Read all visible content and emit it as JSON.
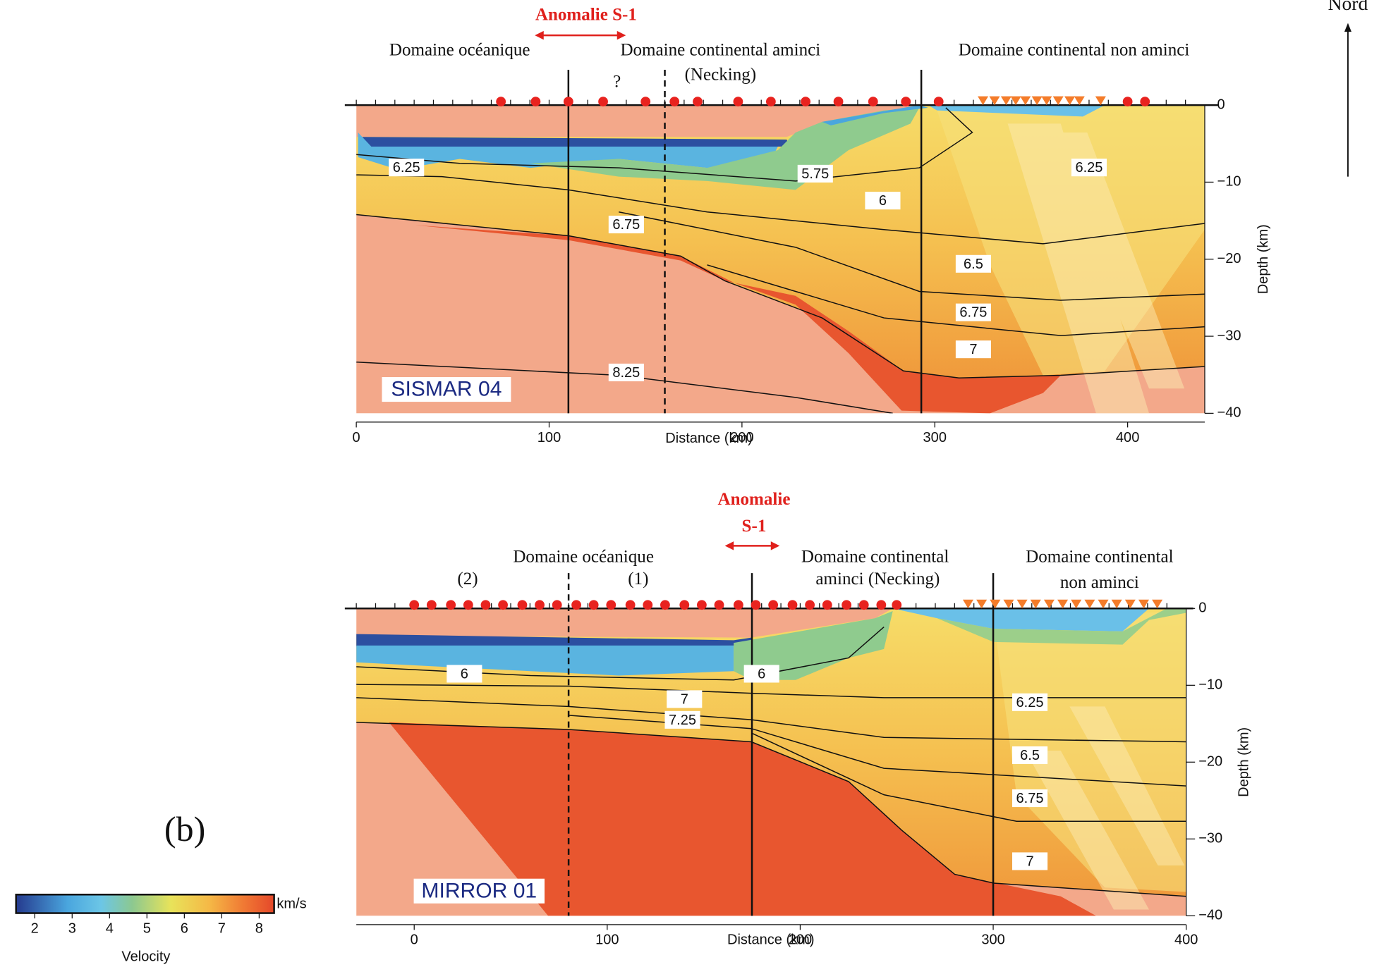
{
  "chart_data": [
    {
      "type": "section",
      "title": "SISMAR 04",
      "xlabel": "Distance (km)",
      "ylabel": "Depth (km)",
      "xlim": [
        0,
        440
      ],
      "xticks": [
        0,
        100,
        200,
        300,
        400
      ],
      "ylim": [
        -40,
        0
      ],
      "yticks": [
        {
          "value": 0,
          "label": "0"
        },
        {
          "value": -10,
          "label": "−10"
        },
        {
          "value": -20,
          "label": "−20"
        },
        {
          "value": -30,
          "label": "−30"
        },
        {
          "value": -40,
          "label": "−40"
        }
      ],
      "annotations": [
        "Anomalie S-1",
        "Domaine océanique",
        "Domaine continental aminci",
        "(Necking)",
        "Domaine continental non aminci",
        "?"
      ],
      "boundaries": [
        110,
        160,
        293
      ],
      "boundary_dashed": [
        false,
        true,
        false
      ],
      "contour_labels": [
        {
          "value": 6.25,
          "x": 26,
          "y": -8.1
        },
        {
          "value": 5.75,
          "x": 238,
          "y": -8.9
        },
        {
          "value": 6,
          "x": 273,
          "y": -12.4
        },
        {
          "value": 6.25,
          "x": 380,
          "y": -8.1
        },
        {
          "value": 6.75,
          "x": 140,
          "y": -15.5
        },
        {
          "value": 6.5,
          "x": 320,
          "y": -20.6
        },
        {
          "value": 6.75,
          "x": 320,
          "y": -26.9
        },
        {
          "value": 7,
          "x": 320,
          "y": -31.7
        },
        {
          "value": 8.25,
          "x": 140,
          "y": -34.7
        }
      ],
      "stations_circle": [
        75,
        93,
        110,
        128,
        150,
        165,
        177,
        198,
        215,
        233,
        250,
        268,
        285,
        302,
        400,
        409
      ],
      "stations_triangle": [
        325,
        331,
        337,
        342,
        347,
        353,
        358,
        364,
        370,
        375,
        386
      ],
      "circle_color": "#e8231f",
      "triangle_color": "#f47c2a"
    },
    {
      "type": "section",
      "title": "MIRROR 01",
      "xlabel": "Distance (km)",
      "ylabel": "Depth (km)",
      "xlim": [
        -30,
        400
      ],
      "xticks": [
        0,
        100,
        200,
        300,
        400
      ],
      "ylim": [
        -40,
        0
      ],
      "yticks": [
        {
          "value": 0,
          "label": "0"
        },
        {
          "value": -10,
          "label": "−10"
        },
        {
          "value": -20,
          "label": "−20"
        },
        {
          "value": -30,
          "label": "−30"
        },
        {
          "value": -40,
          "label": "−40"
        }
      ],
      "annotations": [
        "Anomalie",
        "S-1",
        "Domaine océanique",
        "(2)",
        "(1)",
        "Domaine continental",
        "aminci (Necking)",
        "Domaine continental",
        "non aminci"
      ],
      "boundaries": [
        80,
        175,
        300
      ],
      "boundary_dashed": [
        true,
        false,
        false
      ],
      "contour_labels": [
        {
          "value": 6,
          "x": 26,
          "y": -8.5
        },
        {
          "value": 6,
          "x": 180,
          "y": -8.5
        },
        {
          "value": 7,
          "x": 140,
          "y": -11.8
        },
        {
          "value": 7.25,
          "x": 139,
          "y": -14.5
        },
        {
          "value": 6.25,
          "x": 319,
          "y": -12.2
        },
        {
          "value": 6.5,
          "x": 319,
          "y": -19.1
        },
        {
          "value": 6.75,
          "x": 319,
          "y": -24.7
        },
        {
          "value": 7,
          "x": 319,
          "y": -32.9
        }
      ],
      "stations_circle": [
        0,
        9,
        19,
        28,
        37,
        46,
        56,
        65,
        74,
        84,
        93,
        102,
        112,
        121,
        130,
        140,
        149,
        158,
        168,
        177,
        186,
        196,
        205,
        214,
        224,
        233,
        242,
        250
      ],
      "stations_triangle": [
        287,
        294,
        301,
        308,
        315,
        322,
        329,
        336,
        343,
        350,
        357,
        364,
        371,
        378,
        385
      ],
      "circle_color": "#e8231f",
      "triangle_color": "#f47c2a"
    }
  ],
  "colorbar": {
    "label": "Velocity",
    "unit": "km/s",
    "clim": [
      1.5,
      8.4
    ],
    "ticks": [
      2,
      3,
      4,
      5,
      6,
      7,
      8
    ]
  },
  "figure_label": "(b)",
  "north_label": "Nord"
}
